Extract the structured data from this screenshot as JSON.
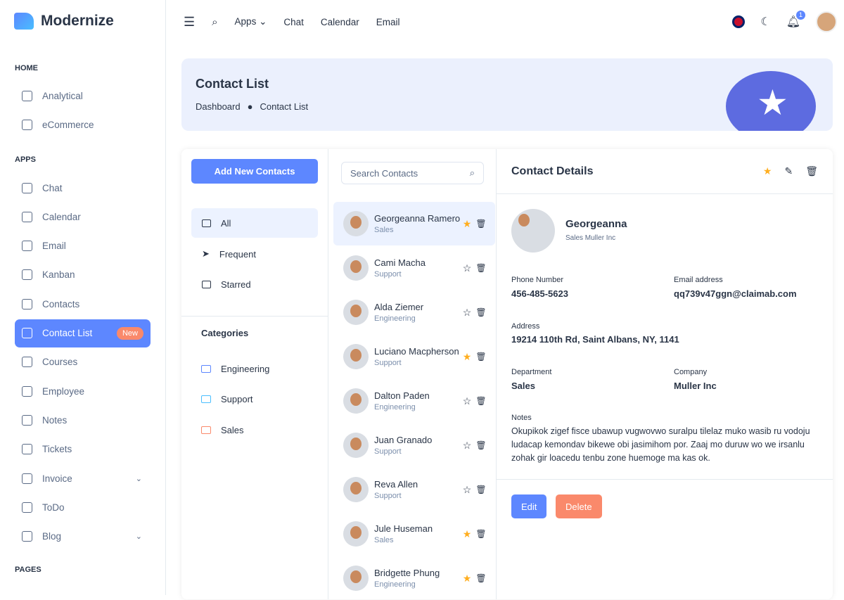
{
  "brand": "Modernize",
  "sidebar": {
    "sections": [
      "HOME",
      "APPS",
      "PAGES"
    ],
    "home": [
      {
        "label": "Analytical",
        "icon": "aperture-icon"
      },
      {
        "label": "eCommerce",
        "icon": "cart-icon"
      }
    ],
    "apps": [
      {
        "label": "Chat",
        "icon": "message-icon"
      },
      {
        "label": "Calendar",
        "icon": "calendar-icon"
      },
      {
        "label": "Email",
        "icon": "mail-icon"
      },
      {
        "label": "Kanban",
        "icon": "kanban-icon"
      },
      {
        "label": "Contacts",
        "icon": "phone-icon"
      },
      {
        "label": "Contact List",
        "icon": "phone-icon",
        "badge": "New"
      },
      {
        "label": "Courses",
        "icon": "courses-icon"
      },
      {
        "label": "Employee",
        "icon": "shield-icon"
      },
      {
        "label": "Notes",
        "icon": "note-icon"
      },
      {
        "label": "Tickets",
        "icon": "ticket-icon"
      },
      {
        "label": "Invoice",
        "icon": "invoice-icon"
      },
      {
        "label": "ToDo",
        "icon": "edit-icon"
      },
      {
        "label": "Blog",
        "icon": "blog-icon"
      }
    ]
  },
  "header": {
    "apps": "Apps",
    "chat": "Chat",
    "calendar": "Calendar",
    "email": "Email",
    "notif_count": "1"
  },
  "banner": {
    "title": "Contact List",
    "crumb1": "Dashboard",
    "crumb2": "Contact List"
  },
  "filters": {
    "add": "Add New Contacts",
    "items": [
      "All",
      "Frequent",
      "Starred"
    ],
    "categories_title": "Categories",
    "categories": [
      {
        "label": "Engineering",
        "color": "#5d87ff"
      },
      {
        "label": "Support",
        "color": "#49beff"
      },
      {
        "label": "Sales",
        "color": "#fa896b"
      }
    ]
  },
  "search": {
    "placeholder": "Search Contacts"
  },
  "contacts": [
    {
      "name": "Georgeanna Ramero",
      "dept": "Sales",
      "starred": true
    },
    {
      "name": "Cami Macha",
      "dept": "Support",
      "starred": false
    },
    {
      "name": "Alda Ziemer",
      "dept": "Engineering",
      "starred": false
    },
    {
      "name": "Luciano Macpherson",
      "dept": "Support",
      "starred": true
    },
    {
      "name": "Dalton Paden",
      "dept": "Engineering",
      "starred": false
    },
    {
      "name": "Juan Granado",
      "dept": "Support",
      "starred": false
    },
    {
      "name": "Reva Allen",
      "dept": "Support",
      "starred": false
    },
    {
      "name": "Jule Huseman",
      "dept": "Sales",
      "starred": true
    },
    {
      "name": "Bridgette Phung",
      "dept": "Engineering",
      "starred": true
    }
  ],
  "details": {
    "title": "Contact Details",
    "name": "Georgeanna",
    "subtitle": "Sales Muller Inc",
    "phone_label": "Phone Number",
    "phone": "456-485-5623",
    "email_label": "Email address",
    "email": "qq739v47ggn@claimab.com",
    "address_label": "Address",
    "address": "19214 110th Rd, Saint Albans, NY, 1141",
    "dept_label": "Department",
    "dept": "Sales",
    "company_label": "Company",
    "company": "Muller Inc",
    "notes_label": "Notes",
    "notes": "Okupikok zigef fisce ubawup vugwovwo suralpu tilelaz muko wasib ru vodoju ludacap kemondav bikewe obi jasimihom por. Zaaj mo duruw wo we irsanlu zohak gir loacedu tenbu zone huemoge ma kas ok.",
    "edit": "Edit",
    "delete": "Delete"
  },
  "colors": {
    "primary": "#5d87ff",
    "danger": "#fa896b",
    "warning": "#ffae1f"
  }
}
